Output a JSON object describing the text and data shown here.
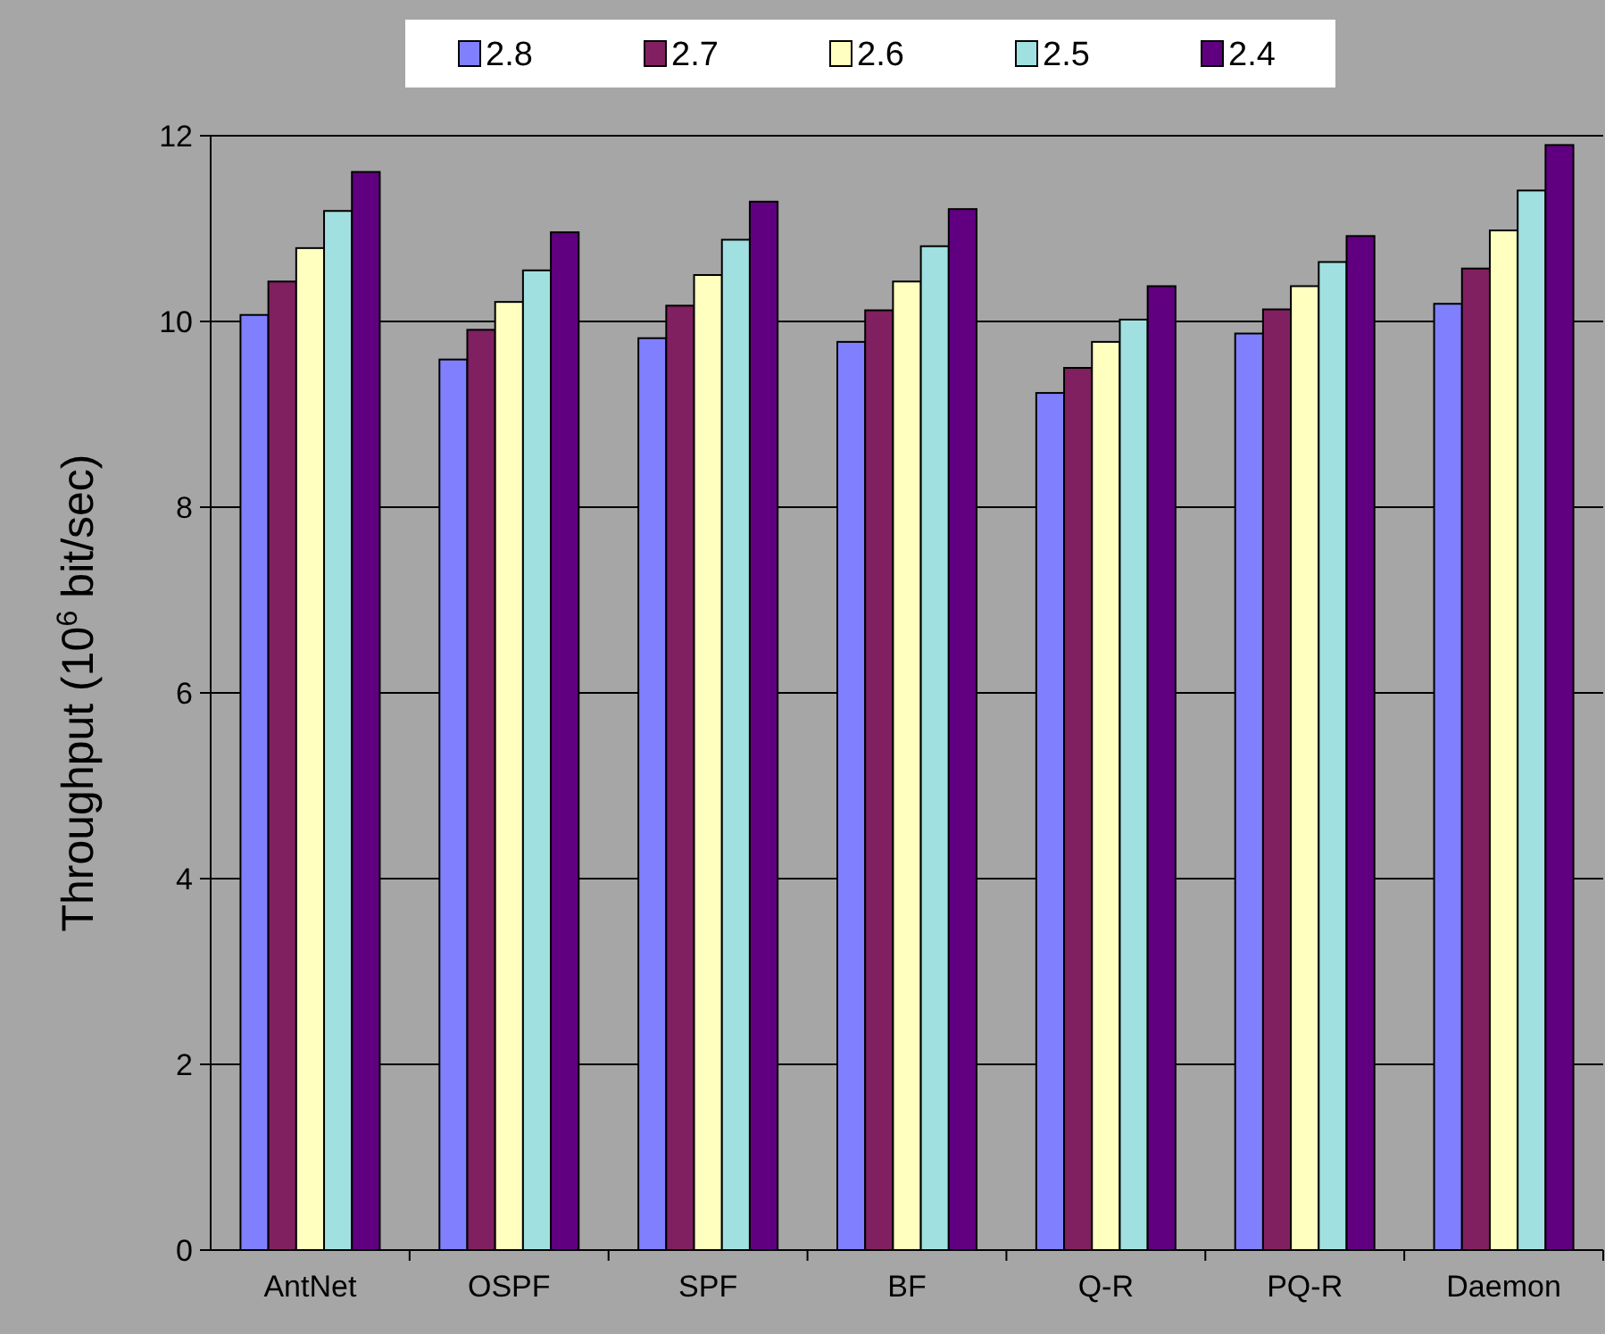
{
  "chart_data": {
    "type": "bar",
    "ylabel": "Throughput (10$^{6}$ bit/sec)",
    "categories": [
      "AntNet",
      "OSPF",
      "SPF",
      "BF",
      "Q-R",
      "PQ-R",
      "Daemon"
    ],
    "series": [
      {
        "name": "2.8",
        "color": "#8080ff",
        "values": [
          10.07,
          9.59,
          9.82,
          9.78,
          9.23,
          9.87,
          10.19
        ]
      },
      {
        "name": "2.7",
        "color": "#802060",
        "values": [
          10.43,
          9.91,
          10.17,
          10.12,
          9.5,
          10.13,
          10.57
        ]
      },
      {
        "name": "2.6",
        "color": "#ffffc0",
        "values": [
          10.79,
          10.21,
          10.5,
          10.43,
          9.78,
          10.38,
          10.98
        ]
      },
      {
        "name": "2.5",
        "color": "#a0e0e0",
        "values": [
          11.19,
          10.55,
          10.88,
          10.81,
          10.02,
          10.64,
          11.41
        ]
      },
      {
        "name": "2.4",
        "color": "#600080",
        "values": [
          11.61,
          10.96,
          11.29,
          11.21,
          10.38,
          10.92,
          11.9
        ]
      }
    ],
    "ylim": [
      0,
      12
    ],
    "yticks": [
      0,
      2,
      4,
      6,
      8,
      10,
      12
    ],
    "grid": "y",
    "legend": "top"
  }
}
